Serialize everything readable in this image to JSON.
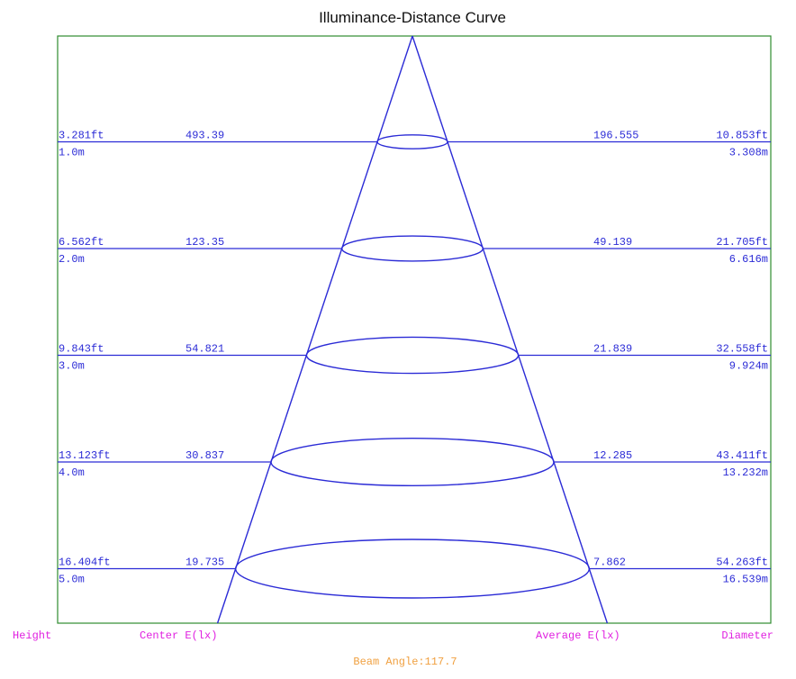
{
  "chart_data": {
    "type": "illuminance-distance-diagram",
    "title": "Illuminance-Distance Curve",
    "beam_angle_text": "Beam Angle:117.7",
    "column_labels": {
      "height": "Height",
      "center": "Center E(lx)",
      "average": "Average E(lx)",
      "diameter": "Diameter"
    },
    "rows": [
      {
        "distance_m": 1,
        "height_ft": "3.281ft",
        "height_m": "1.0m",
        "center_lux": "493.39",
        "average_lux": "196.555",
        "diameter_ft": "10.853ft",
        "diameter_m": "3.308m"
      },
      {
        "distance_m": 2,
        "height_ft": "6.562ft",
        "height_m": "2.0m",
        "center_lux": "123.35",
        "average_lux": "49.139",
        "diameter_ft": "21.705ft",
        "diameter_m": "6.616m"
      },
      {
        "distance_m": 3,
        "height_ft": "9.843ft",
        "height_m": "3.0m",
        "center_lux": "54.821",
        "average_lux": "21.839",
        "diameter_ft": "32.558ft",
        "diameter_m": "9.924m"
      },
      {
        "distance_m": 4,
        "height_ft": "13.123ft",
        "height_m": "4.0m",
        "center_lux": "30.837",
        "average_lux": "12.285",
        "diameter_ft": "43.411ft",
        "diameter_m": "13.232m"
      },
      {
        "distance_m": 5,
        "height_ft": "16.404ft",
        "height_m": "5.0m",
        "center_lux": "19.735",
        "average_lux": "7.862",
        "diameter_ft": "54.263ft",
        "diameter_m": "16.539m"
      }
    ],
    "colors": {
      "frame": "#2e8b2e",
      "lines": "#2b2bd6",
      "column_labels": "#e020e0",
      "beam_angle": "#f0a040",
      "title": "#111111"
    }
  }
}
